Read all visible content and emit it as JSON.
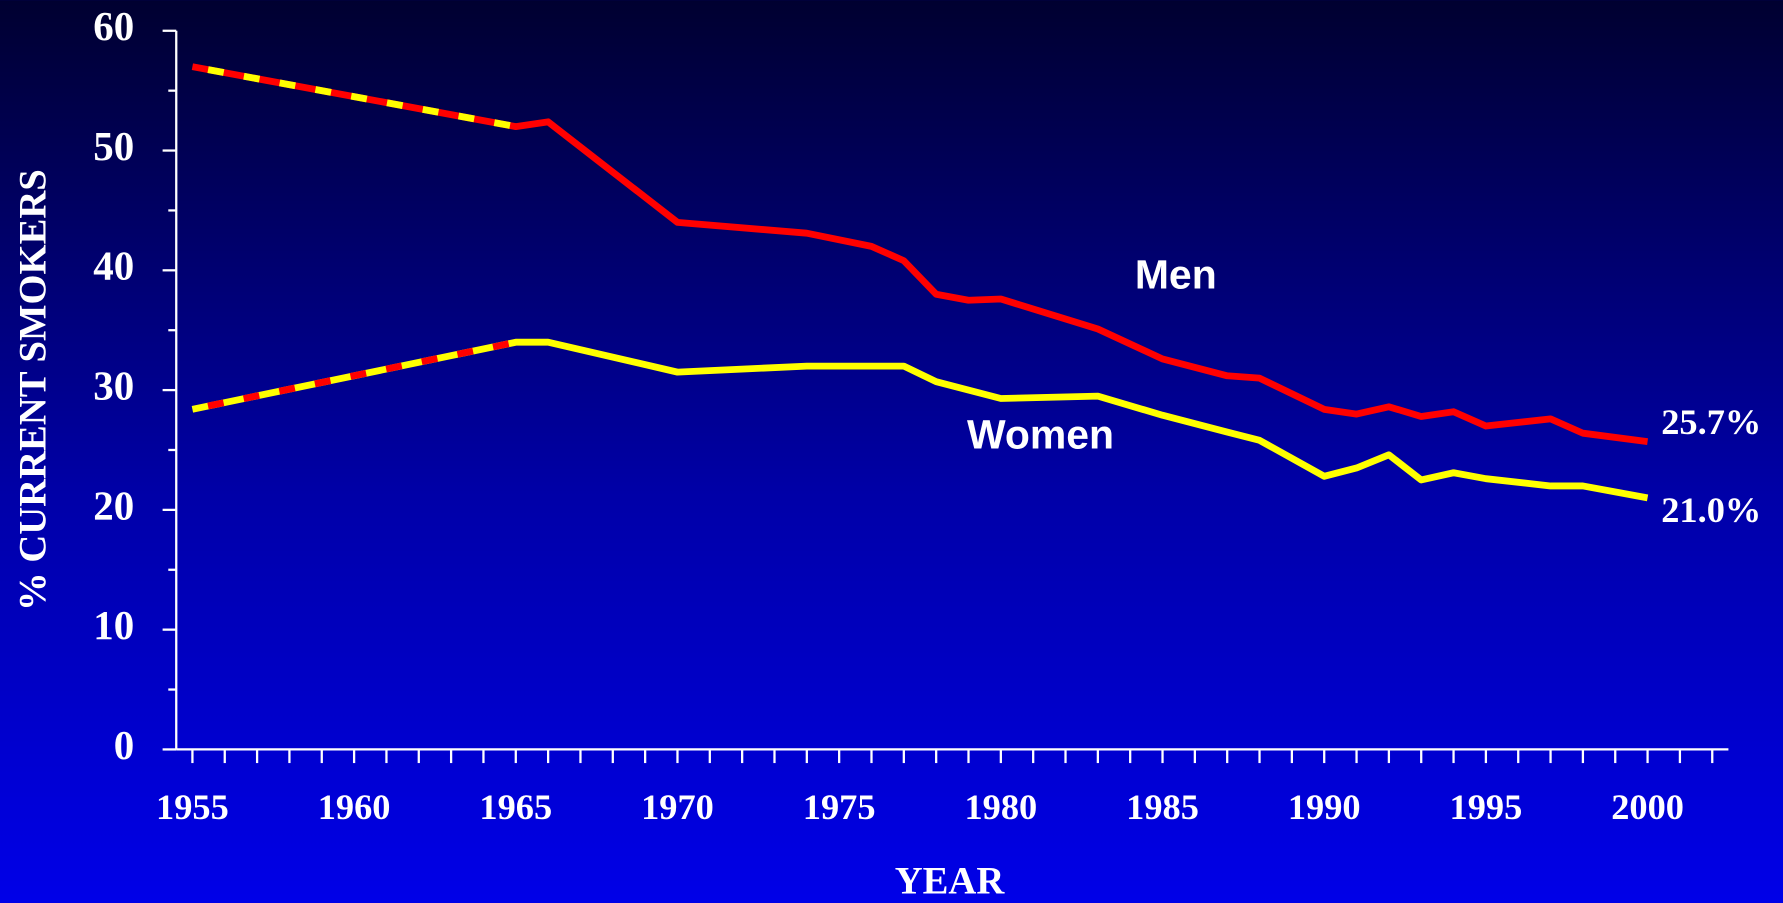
{
  "chart_data": {
    "type": "line",
    "x_label": "YEAR",
    "y_label": "% CURRENT SMOKERS",
    "xlim": [
      1954.5,
      2002.5
    ],
    "xticks": [
      1955,
      1960,
      1965,
      1970,
      1975,
      1980,
      1985,
      1990,
      1995,
      2000
    ],
    "xminorticks": [
      1955,
      1956,
      1957,
      1958,
      1959,
      1960,
      1961,
      1962,
      1963,
      1964,
      1965,
      1966,
      1967,
      1968,
      1969,
      1970,
      1971,
      1972,
      1973,
      1974,
      1975,
      1976,
      1977,
      1978,
      1979,
      1980,
      1981,
      1982,
      1983,
      1984,
      1985,
      1986,
      1987,
      1988,
      1989,
      1990,
      1991,
      1992,
      1993,
      1994,
      1995,
      1996,
      1997,
      1998,
      1999,
      2000,
      2001,
      2002
    ],
    "ylim": [
      0,
      60
    ],
    "yticks": [
      0,
      10,
      20,
      30,
      40,
      50,
      60
    ],
    "yminorticks": [
      5,
      15,
      25,
      35,
      45,
      55
    ],
    "series": [
      {
        "name": "Men",
        "color": "#ff0000",
        "dash_color": "#ffff00",
        "x": [
          1955,
          1965,
          1966,
          1970,
          1974,
          1976,
          1977,
          1978,
          1979,
          1980,
          1983,
          1985,
          1987,
          1988,
          1990,
          1991,
          1992,
          1993,
          1994,
          1995,
          1997,
          1998,
          2000
        ],
        "values": [
          57,
          52,
          52.4,
          44,
          43.1,
          42,
          40.8,
          38,
          37.5,
          37.6,
          35.1,
          32.6,
          31.2,
          31,
          28.4,
          28,
          28.6,
          27.8,
          28.2,
          27,
          27.6,
          26.4,
          25.7
        ],
        "value_labels": [
          null,
          null,
          null,
          null,
          null,
          null,
          null,
          null,
          null,
          null,
          null,
          null,
          null,
          null,
          null,
          null,
          null,
          null,
          null,
          null,
          null,
          null,
          "25.7%"
        ]
      },
      {
        "name": "Women",
        "color": "#ffff00",
        "dash_color": "#ff0000",
        "x": [
          1955,
          1965,
          1966,
          1970,
          1974,
          1977,
          1978,
          1980,
          1983,
          1985,
          1987,
          1988,
          1990,
          1991,
          1992,
          1993,
          1994,
          1995,
          1997,
          1998,
          2000
        ],
        "values": [
          28.4,
          34,
          34,
          31.5,
          32,
          32,
          30.7,
          29.3,
          29.5,
          27.9,
          26.5,
          25.8,
          22.8,
          23.5,
          24.6,
          22.5,
          23.1,
          22.6,
          22,
          22,
          21.0
        ],
        "value_labels": [
          null,
          null,
          null,
          null,
          null,
          null,
          null,
          null,
          null,
          null,
          null,
          null,
          null,
          null,
          null,
          null,
          null,
          null,
          null,
          null,
          "21.0%"
        ]
      }
    ]
  }
}
